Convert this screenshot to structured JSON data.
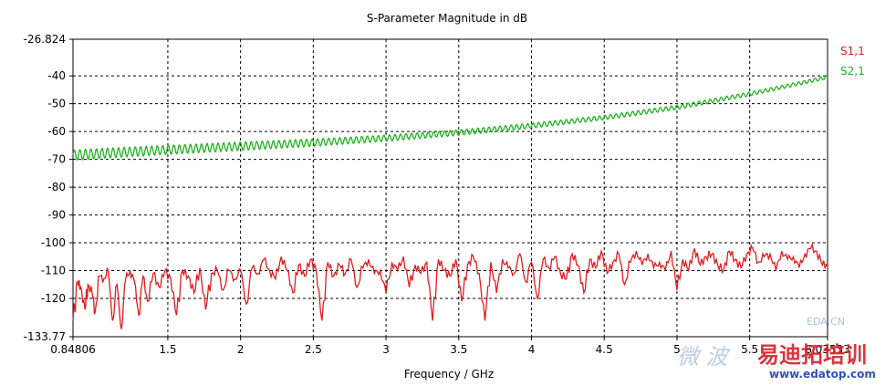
{
  "chart_data": {
    "type": "line",
    "title": "S-Parameter Magnitude in dB",
    "xlabel": "Frequency / GHz",
    "ylabel": "",
    "xlim": [
      0.84806,
      6.03533
    ],
    "ylim": [
      -133.77,
      -26.824
    ],
    "x_tick_labels": [
      "0.84806",
      "1.5",
      "2",
      "2.5",
      "3",
      "3.5",
      "4",
      "4.5",
      "5",
      "5.5",
      "6.03533"
    ],
    "x_ticks": [
      0.84806,
      1.5,
      2,
      2.5,
      3,
      3.5,
      4,
      4.5,
      5,
      5.5,
      6.03533
    ],
    "y_tick_labels": [
      "-26.824",
      "-40",
      "-50",
      "-60",
      "-70",
      "-80",
      "-90",
      "-100",
      "-110",
      "-120",
      "-133.77"
    ],
    "y_ticks": [
      -26.824,
      -40,
      -50,
      -60,
      -70,
      -80,
      -90,
      -100,
      -110,
      -120,
      -133.77
    ],
    "grid": true,
    "legend_position": "right",
    "series": [
      {
        "name": "S1,1",
        "color": "#e41a1c",
        "x": [
          0.848,
          0.88,
          0.9,
          0.93,
          0.95,
          0.98,
          1.0,
          1.03,
          1.06,
          1.09,
          1.12,
          1.15,
          1.18,
          1.21,
          1.24,
          1.27,
          1.3,
          1.33,
          1.36,
          1.4,
          1.44,
          1.48,
          1.52,
          1.56,
          1.6,
          1.64,
          1.68,
          1.72,
          1.76,
          1.8,
          1.84,
          1.88,
          1.92,
          1.96,
          2.0,
          2.04,
          2.08,
          2.12,
          2.16,
          2.2,
          2.24,
          2.28,
          2.32,
          2.36,
          2.4,
          2.44,
          2.48,
          2.52,
          2.56,
          2.6,
          2.64,
          2.68,
          2.72,
          2.76,
          2.8,
          2.84,
          2.88,
          2.92,
          2.96,
          3.0,
          3.04,
          3.08,
          3.12,
          3.16,
          3.2,
          3.24,
          3.28,
          3.32,
          3.36,
          3.4,
          3.44,
          3.48,
          3.52,
          3.56,
          3.6,
          3.64,
          3.68,
          3.72,
          3.76,
          3.8,
          3.84,
          3.88,
          3.92,
          3.96,
          4.0,
          4.04,
          4.08,
          4.12,
          4.16,
          4.2,
          4.24,
          4.28,
          4.32,
          4.36,
          4.4,
          4.44,
          4.48,
          4.52,
          4.56,
          4.6,
          4.64,
          4.68,
          4.72,
          4.76,
          4.8,
          4.84,
          4.88,
          4.92,
          4.96,
          5.0,
          5.04,
          5.08,
          5.12,
          5.16,
          5.2,
          5.24,
          5.28,
          5.32,
          5.36,
          5.4,
          5.44,
          5.48,
          5.52,
          5.56,
          5.6,
          5.64,
          5.68,
          5.72,
          5.76,
          5.8,
          5.84,
          5.88,
          5.92,
          5.96,
          6.0,
          6.035
        ],
        "y": [
          -128,
          -114,
          -116,
          -124,
          -115,
          -118,
          -125,
          -112,
          -113,
          -110,
          -128,
          -115,
          -131,
          -113,
          -110,
          -114,
          -126,
          -112,
          -121,
          -111,
          -116,
          -110,
          -113,
          -126,
          -110,
          -112,
          -118,
          -109,
          -124,
          -111,
          -110,
          -117,
          -110,
          -113,
          -110,
          -122,
          -109,
          -111,
          -106,
          -110,
          -113,
          -105,
          -110,
          -118,
          -108,
          -112,
          -106,
          -110,
          -128,
          -107,
          -112,
          -108,
          -111,
          -106,
          -116,
          -109,
          -106,
          -111,
          -110,
          -118,
          -107,
          -110,
          -105,
          -116,
          -108,
          -111,
          -107,
          -128,
          -106,
          -110,
          -112,
          -106,
          -121,
          -108,
          -105,
          -111,
          -128,
          -107,
          -118,
          -106,
          -109,
          -111,
          -104,
          -114,
          -107,
          -120,
          -106,
          -109,
          -105,
          -111,
          -113,
          -104,
          -108,
          -118,
          -106,
          -109,
          -103,
          -111,
          -107,
          -104,
          -115,
          -107,
          -103,
          -108,
          -104,
          -109,
          -107,
          -110,
          -103,
          -117,
          -106,
          -110,
          -102,
          -108,
          -105,
          -104,
          -108,
          -110,
          -103,
          -106,
          -109,
          -104,
          -102,
          -107,
          -105,
          -104,
          -110,
          -103,
          -106,
          -105,
          -109,
          -104,
          -102,
          -103,
          -108,
          -108
        ],
        "noise_amp": [
          5,
          2,
          2,
          4,
          2,
          3,
          4,
          2,
          2,
          2,
          4,
          2,
          4,
          2,
          2,
          2,
          4,
          2,
          3,
          2,
          2,
          2,
          2,
          4,
          2,
          2,
          3,
          2,
          4,
          2,
          2,
          3,
          2,
          2,
          2,
          4,
          2,
          2,
          2,
          2,
          2,
          2,
          2,
          3,
          2,
          2,
          2,
          2,
          4,
          2,
          2,
          2,
          2,
          2,
          3,
          2,
          2,
          2,
          2,
          3,
          2,
          2,
          2,
          3,
          2,
          2,
          2,
          4,
          2,
          2,
          2,
          2,
          3,
          2,
          2,
          2,
          4,
          2,
          3,
          2,
          2,
          2,
          2,
          3,
          2,
          3,
          2,
          2,
          2,
          2,
          3,
          2,
          2,
          3,
          2,
          2,
          2,
          2,
          2,
          2,
          3,
          2,
          2,
          2,
          2,
          2,
          2,
          2,
          2,
          3,
          2,
          2,
          2,
          2,
          2,
          2,
          2,
          2,
          2,
          2,
          2,
          2,
          2,
          2,
          2,
          2,
          2,
          2,
          2,
          2,
          2,
          2,
          2,
          2,
          2,
          2
        ]
      },
      {
        "name": "S2,1",
        "color": "#1db31d",
        "x": [
          0.848,
          1.0,
          1.5,
          2.0,
          2.5,
          3.0,
          3.5,
          4.0,
          4.5,
          5.0,
          5.5,
          6.035
        ],
        "y": [
          -68.5,
          -68.0,
          -66.6,
          -65.3,
          -64.0,
          -62.4,
          -60.4,
          -57.9,
          -55.0,
          -51.3,
          -46.5,
          -40.5
        ],
        "ripple_amplitude": [
          1.8,
          1.8,
          1.6,
          1.5,
          1.3,
          1.1,
          1.0,
          0.9,
          0.8,
          0.8,
          0.7,
          0.6
        ],
        "ripple_period_ghz": 0.038
      }
    ]
  },
  "watermark": {
    "site_text": "EDA.CN",
    "chinese_brush": "微 波",
    "brand_cn": "易迪拓培训",
    "url": "www.edatop.com",
    "red_color": "#d7202a",
    "blue_color": "#1a3fae"
  }
}
